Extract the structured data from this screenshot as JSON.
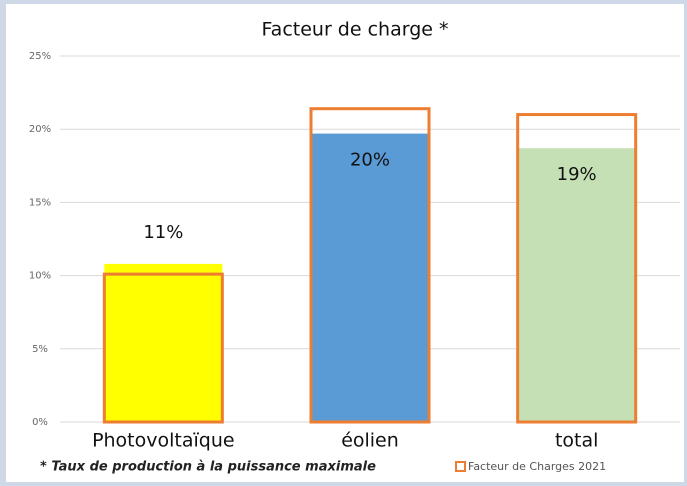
{
  "chart_data": {
    "type": "bar",
    "title": "Facteur de charge *",
    "categories": [
      "Photovoltaïque",
      "éolien",
      "total"
    ],
    "series": [
      {
        "colors": [
          "#ffff00",
          "#5b9bd5",
          "#c5e0b4"
        ],
        "values": [
          10.8,
          19.7,
          18.7
        ],
        "value_labels": [
          "11%",
          "20%",
          "19%"
        ]
      },
      {
        "name": "Facteur de Charges 2021",
        "color": "#ed7d31",
        "style": "outline",
        "values": [
          10.1,
          21.4,
          21.0
        ]
      }
    ],
    "ylim": [
      0,
      25
    ],
    "yticks": [
      {
        "value": 0,
        "label": "0%"
      },
      {
        "value": 5,
        "label": "5%"
      },
      {
        "value": 10,
        "label": "10%"
      },
      {
        "value": 15,
        "label": "15%"
      },
      {
        "value": 20,
        "label": "20%"
      },
      {
        "value": 25,
        "label": "25%"
      }
    ],
    "grid": true,
    "legend": "bottom-right",
    "footnote": "* Taux de production à la puissance maximale"
  }
}
